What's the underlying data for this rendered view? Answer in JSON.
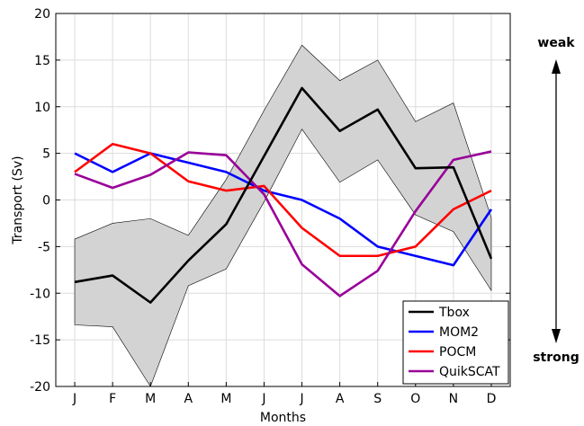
{
  "chart_data": {
    "type": "line",
    "xlabel": "Months",
    "ylabel": "Transport (Sv)",
    "ylim": [
      -20,
      20
    ],
    "yticks": [
      20,
      15,
      10,
      5,
      0,
      -5,
      -10,
      -15,
      -20
    ],
    "grid": true,
    "legend_position": "bottom-right",
    "categories": [
      "J",
      "F",
      "M",
      "A",
      "M",
      "J",
      "J",
      "A",
      "S",
      "O",
      "N",
      "D"
    ],
    "band": {
      "color": "#d3d3d3",
      "upper": [
        -4.2,
        -2.5,
        -2.0,
        -3.8,
        2.2,
        9.6,
        16.6,
        12.8,
        15.0,
        8.4,
        10.4,
        -1.9
      ],
      "lower": [
        -13.4,
        -13.6,
        -20.0,
        -9.2,
        -7.4,
        -0.2,
        7.6,
        1.9,
        4.3,
        -1.6,
        -3.4,
        -9.7
      ]
    },
    "series": [
      {
        "name": "Tbox",
        "color": "#000000",
        "values": [
          -8.8,
          -8.1,
          -11.0,
          -6.5,
          -2.6,
          4.7,
          12.0,
          7.4,
          9.7,
          3.4,
          3.5,
          -6.3
        ]
      },
      {
        "name": "MOM2",
        "color": "#0000ff",
        "values": [
          5.0,
          3.0,
          5.0,
          4.0,
          3.0,
          1.0,
          0.0,
          -2.0,
          -5.0,
          -6.0,
          -7.0,
          -1.0
        ]
      },
      {
        "name": "POCM",
        "color": "#ff0000",
        "values": [
          3.0,
          6.0,
          5.0,
          2.0,
          1.0,
          1.5,
          -3.0,
          -6.0,
          -6.0,
          -5.0,
          -1.0,
          1.0
        ]
      },
      {
        "name": "QuikSCAT",
        "color": "#990099",
        "values": [
          2.8,
          1.3,
          2.7,
          5.1,
          4.8,
          0.6,
          -6.9,
          -10.3,
          -7.6,
          -1.2,
          4.3,
          5.2
        ]
      }
    ]
  },
  "side_labels": {
    "top": "weak",
    "bottom": "strong"
  }
}
